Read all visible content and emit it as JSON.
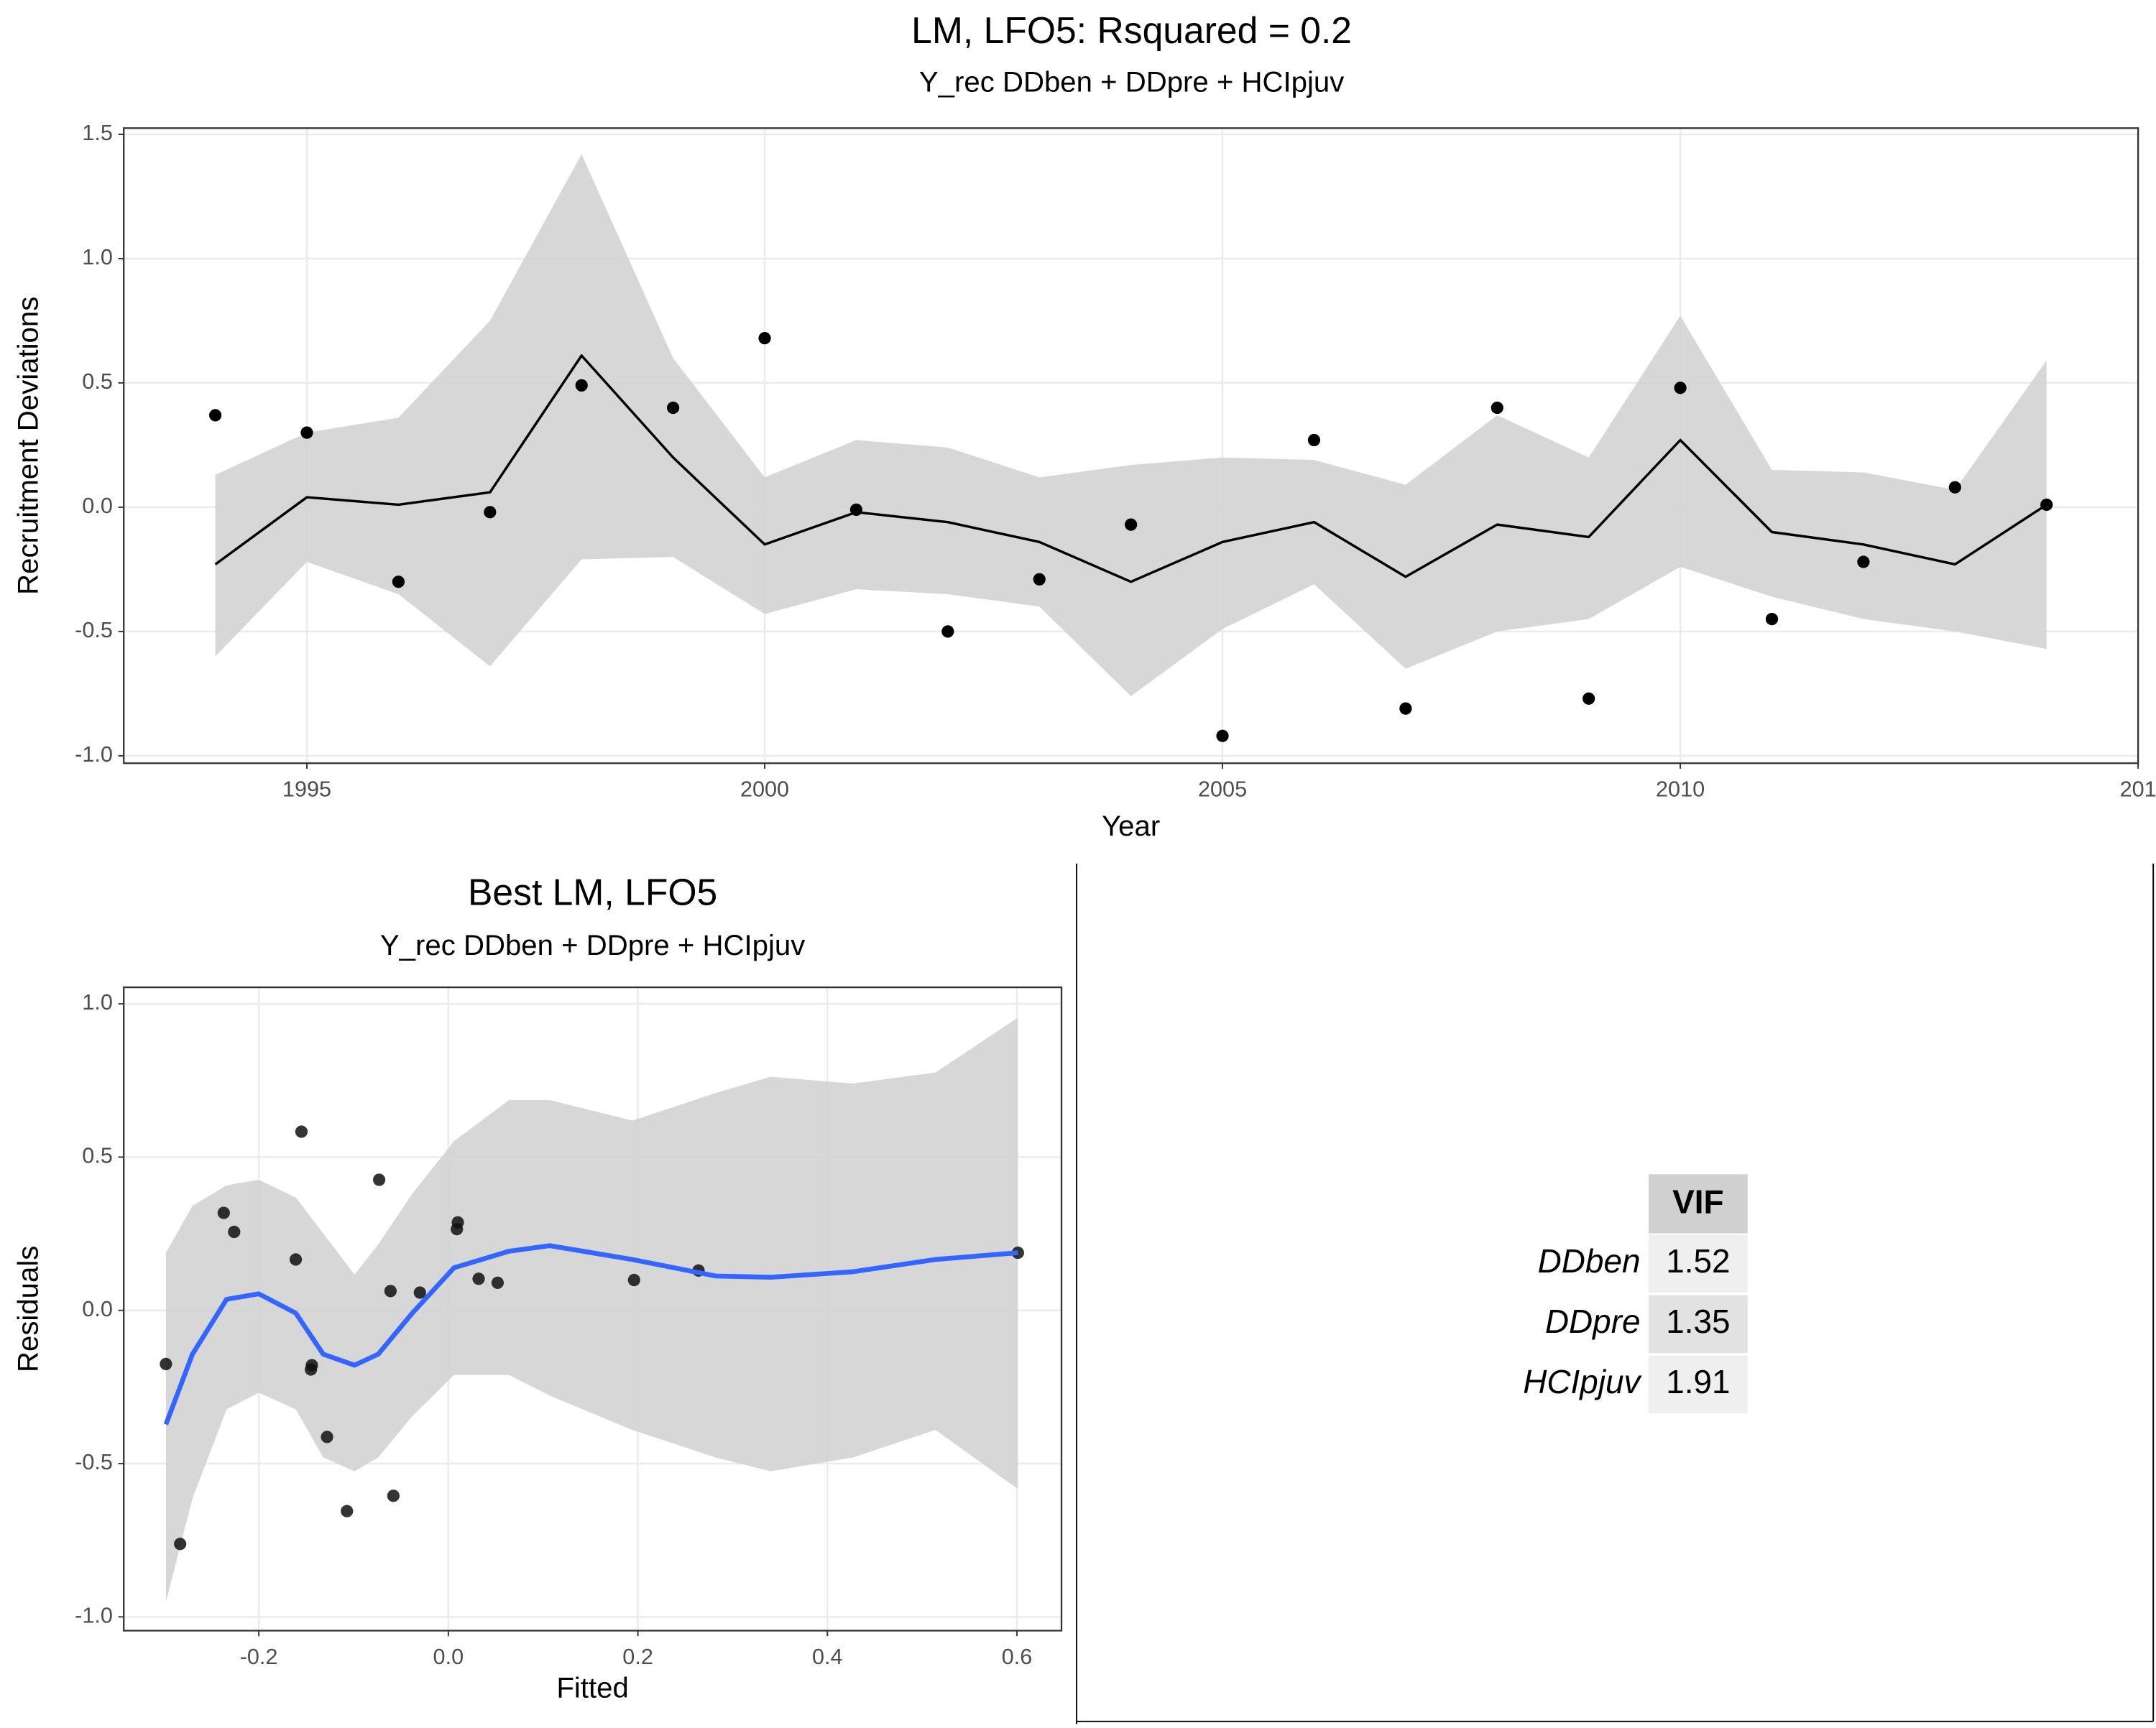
{
  "chart_data": [
    {
      "type": "line",
      "title": "LM, LFO5: Rsquared =  0.2",
      "subtitle": "Y_rec DDben + DDpre + HCIpjuv",
      "x_label": "Year",
      "y_label": "Recruitment Deviations",
      "x": [
        1994,
        1995,
        1996,
        1997,
        1998,
        1999,
        2000,
        2001,
        2002,
        2003,
        2004,
        2005,
        2006,
        2007,
        2008,
        2009,
        2010,
        2011,
        2012,
        2013,
        2014
      ],
      "values": [
        0.37,
        0.3,
        -0.3,
        -0.02,
        0.49,
        0.4,
        0.68,
        -0.01,
        -0.5,
        -0.29,
        -0.07,
        -0.92,
        0.27,
        -0.81,
        0.4,
        -0.77,
        0.48,
        -0.45,
        -0.22,
        0.08,
        0.01
      ],
      "color": "#000000",
      "fit": {
        "x": [
          1994,
          1995,
          1996,
          1997,
          1998,
          1999,
          2000,
          2001,
          2002,
          2003,
          2004,
          2005,
          2006,
          2007,
          2008,
          2009,
          2010,
          2011,
          2012,
          2013,
          2014
        ],
        "values": [
          -0.23,
          0.04,
          0.01,
          0.06,
          0.61,
          0.2,
          -0.15,
          -0.02,
          -0.06,
          -0.14,
          -0.3,
          -0.14,
          -0.06,
          -0.28,
          -0.07,
          -0.12,
          0.27,
          -0.1,
          -0.15,
          -0.23,
          0.01
        ],
        "color": "#000000"
      },
      "band": {
        "x": [
          1994,
          1995,
          1996,
          1997,
          1998,
          1999,
          2000,
          2001,
          2002,
          2003,
          2004,
          2005,
          2006,
          2007,
          2008,
          2009,
          2010,
          2011,
          2012,
          2013,
          2014
        ],
        "upper": [
          0.13,
          0.3,
          0.36,
          0.75,
          1.42,
          0.6,
          0.12,
          0.27,
          0.24,
          0.12,
          0.17,
          0.2,
          0.19,
          0.09,
          0.37,
          0.2,
          0.77,
          0.15,
          0.14,
          0.07,
          0.59
        ],
        "lower": [
          -0.6,
          -0.22,
          -0.35,
          -0.64,
          -0.21,
          -0.2,
          -0.43,
          -0.33,
          -0.35,
          -0.4,
          -0.76,
          -0.49,
          -0.31,
          -0.65,
          -0.5,
          -0.45,
          -0.24,
          -0.36,
          -0.45,
          -0.5,
          -0.57
        ],
        "color": "#d3d3d3"
      },
      "xlim": [
        1993.0,
        2015.0
      ],
      "xticks": [
        1995,
        2000,
        2005,
        2010,
        {
          "value": 2015,
          "label": "201"
        }
      ],
      "ylim": [
        -1.03,
        1.525
      ],
      "yticks": [
        {
          "value": -1,
          "label": "-1.0"
        },
        -0.5,
        {
          "value": 0,
          "label": "0.0"
        },
        0.5,
        {
          "value": 1,
          "label": "1.0"
        },
        1.5
      ],
      "grid": true
    },
    {
      "type": "scatter",
      "title": "Best LM, LFO5",
      "subtitle": "Y_rec DDben + DDpre + HCIpjuv",
      "x_label": "Fitted",
      "y_label": "Residuals",
      "x": [
        -0.298,
        -0.283,
        -0.237,
        -0.226,
        -0.161,
        -0.155,
        -0.144,
        -0.145,
        -0.128,
        -0.107,
        -0.073,
        -0.061,
        -0.058,
        -0.03,
        0.01,
        0.009,
        0.032,
        0.052,
        0.196,
        0.264,
        0.601
      ],
      "values": [
        -0.175,
        -0.762,
        0.318,
        0.256,
        0.166,
        0.583,
        -0.179,
        -0.193,
        -0.413,
        -0.655,
        0.426,
        0.063,
        -0.605,
        0.058,
        0.287,
        0.265,
        0.103,
        0.09,
        0.099,
        0.13,
        0.188
      ],
      "color": "#111111",
      "fit": {
        "x": [
          -0.298,
          -0.27,
          -0.234,
          -0.2,
          -0.161,
          -0.132,
          -0.099,
          -0.074,
          -0.038,
          0.006,
          0.064,
          0.107,
          0.194,
          0.282,
          0.34,
          0.427,
          0.514,
          0.601
        ],
        "values": [
          -0.372,
          -0.143,
          0.036,
          0.054,
          -0.009,
          -0.143,
          -0.179,
          -0.143,
          -0.009,
          0.139,
          0.193,
          0.211,
          0.166,
          0.112,
          0.108,
          0.126,
          0.166,
          0.188
        ],
        "color": "#3366ff"
      },
      "band": {
        "x": [
          -0.298,
          -0.27,
          -0.234,
          -0.2,
          -0.161,
          -0.132,
          -0.099,
          -0.074,
          -0.038,
          0.006,
          0.064,
          0.107,
          0.194,
          0.282,
          0.34,
          0.427,
          0.514,
          0.601
        ],
        "upper": [
          0.188,
          0.341,
          0.408,
          0.426,
          0.368,
          0.251,
          0.117,
          0.215,
          0.381,
          0.552,
          0.686,
          0.686,
          0.619,
          0.709,
          0.762,
          0.74,
          0.776,
          0.955
        ],
        "lower": [
          -0.951,
          -0.614,
          -0.323,
          -0.269,
          -0.323,
          -0.48,
          -0.525,
          -0.48,
          -0.345,
          -0.211,
          -0.211,
          -0.278,
          -0.39,
          -0.48,
          -0.525,
          -0.48,
          -0.39,
          -0.583
        ],
        "color": "#d3d3d3"
      },
      "xlim": [
        -0.3425,
        0.647
      ],
      "xticks": [
        -0.2,
        {
          "value": 0,
          "label": "0.0"
        },
        0.2,
        0.4,
        0.6
      ],
      "ylim": [
        -1.045,
        1.054
      ],
      "yticks": [
        {
          "value": -1,
          "label": "-1.0"
        },
        -0.5,
        {
          "value": 0,
          "label": "0.0"
        },
        0.5,
        {
          "value": 1,
          "label": "1.0"
        }
      ],
      "grid": true
    }
  ],
  "table": {
    "header": "VIF",
    "rows": [
      [
        "DDben",
        1.52
      ],
      [
        "DDpre",
        1.35
      ],
      [
        "HCIpjuv",
        1.91
      ]
    ]
  }
}
